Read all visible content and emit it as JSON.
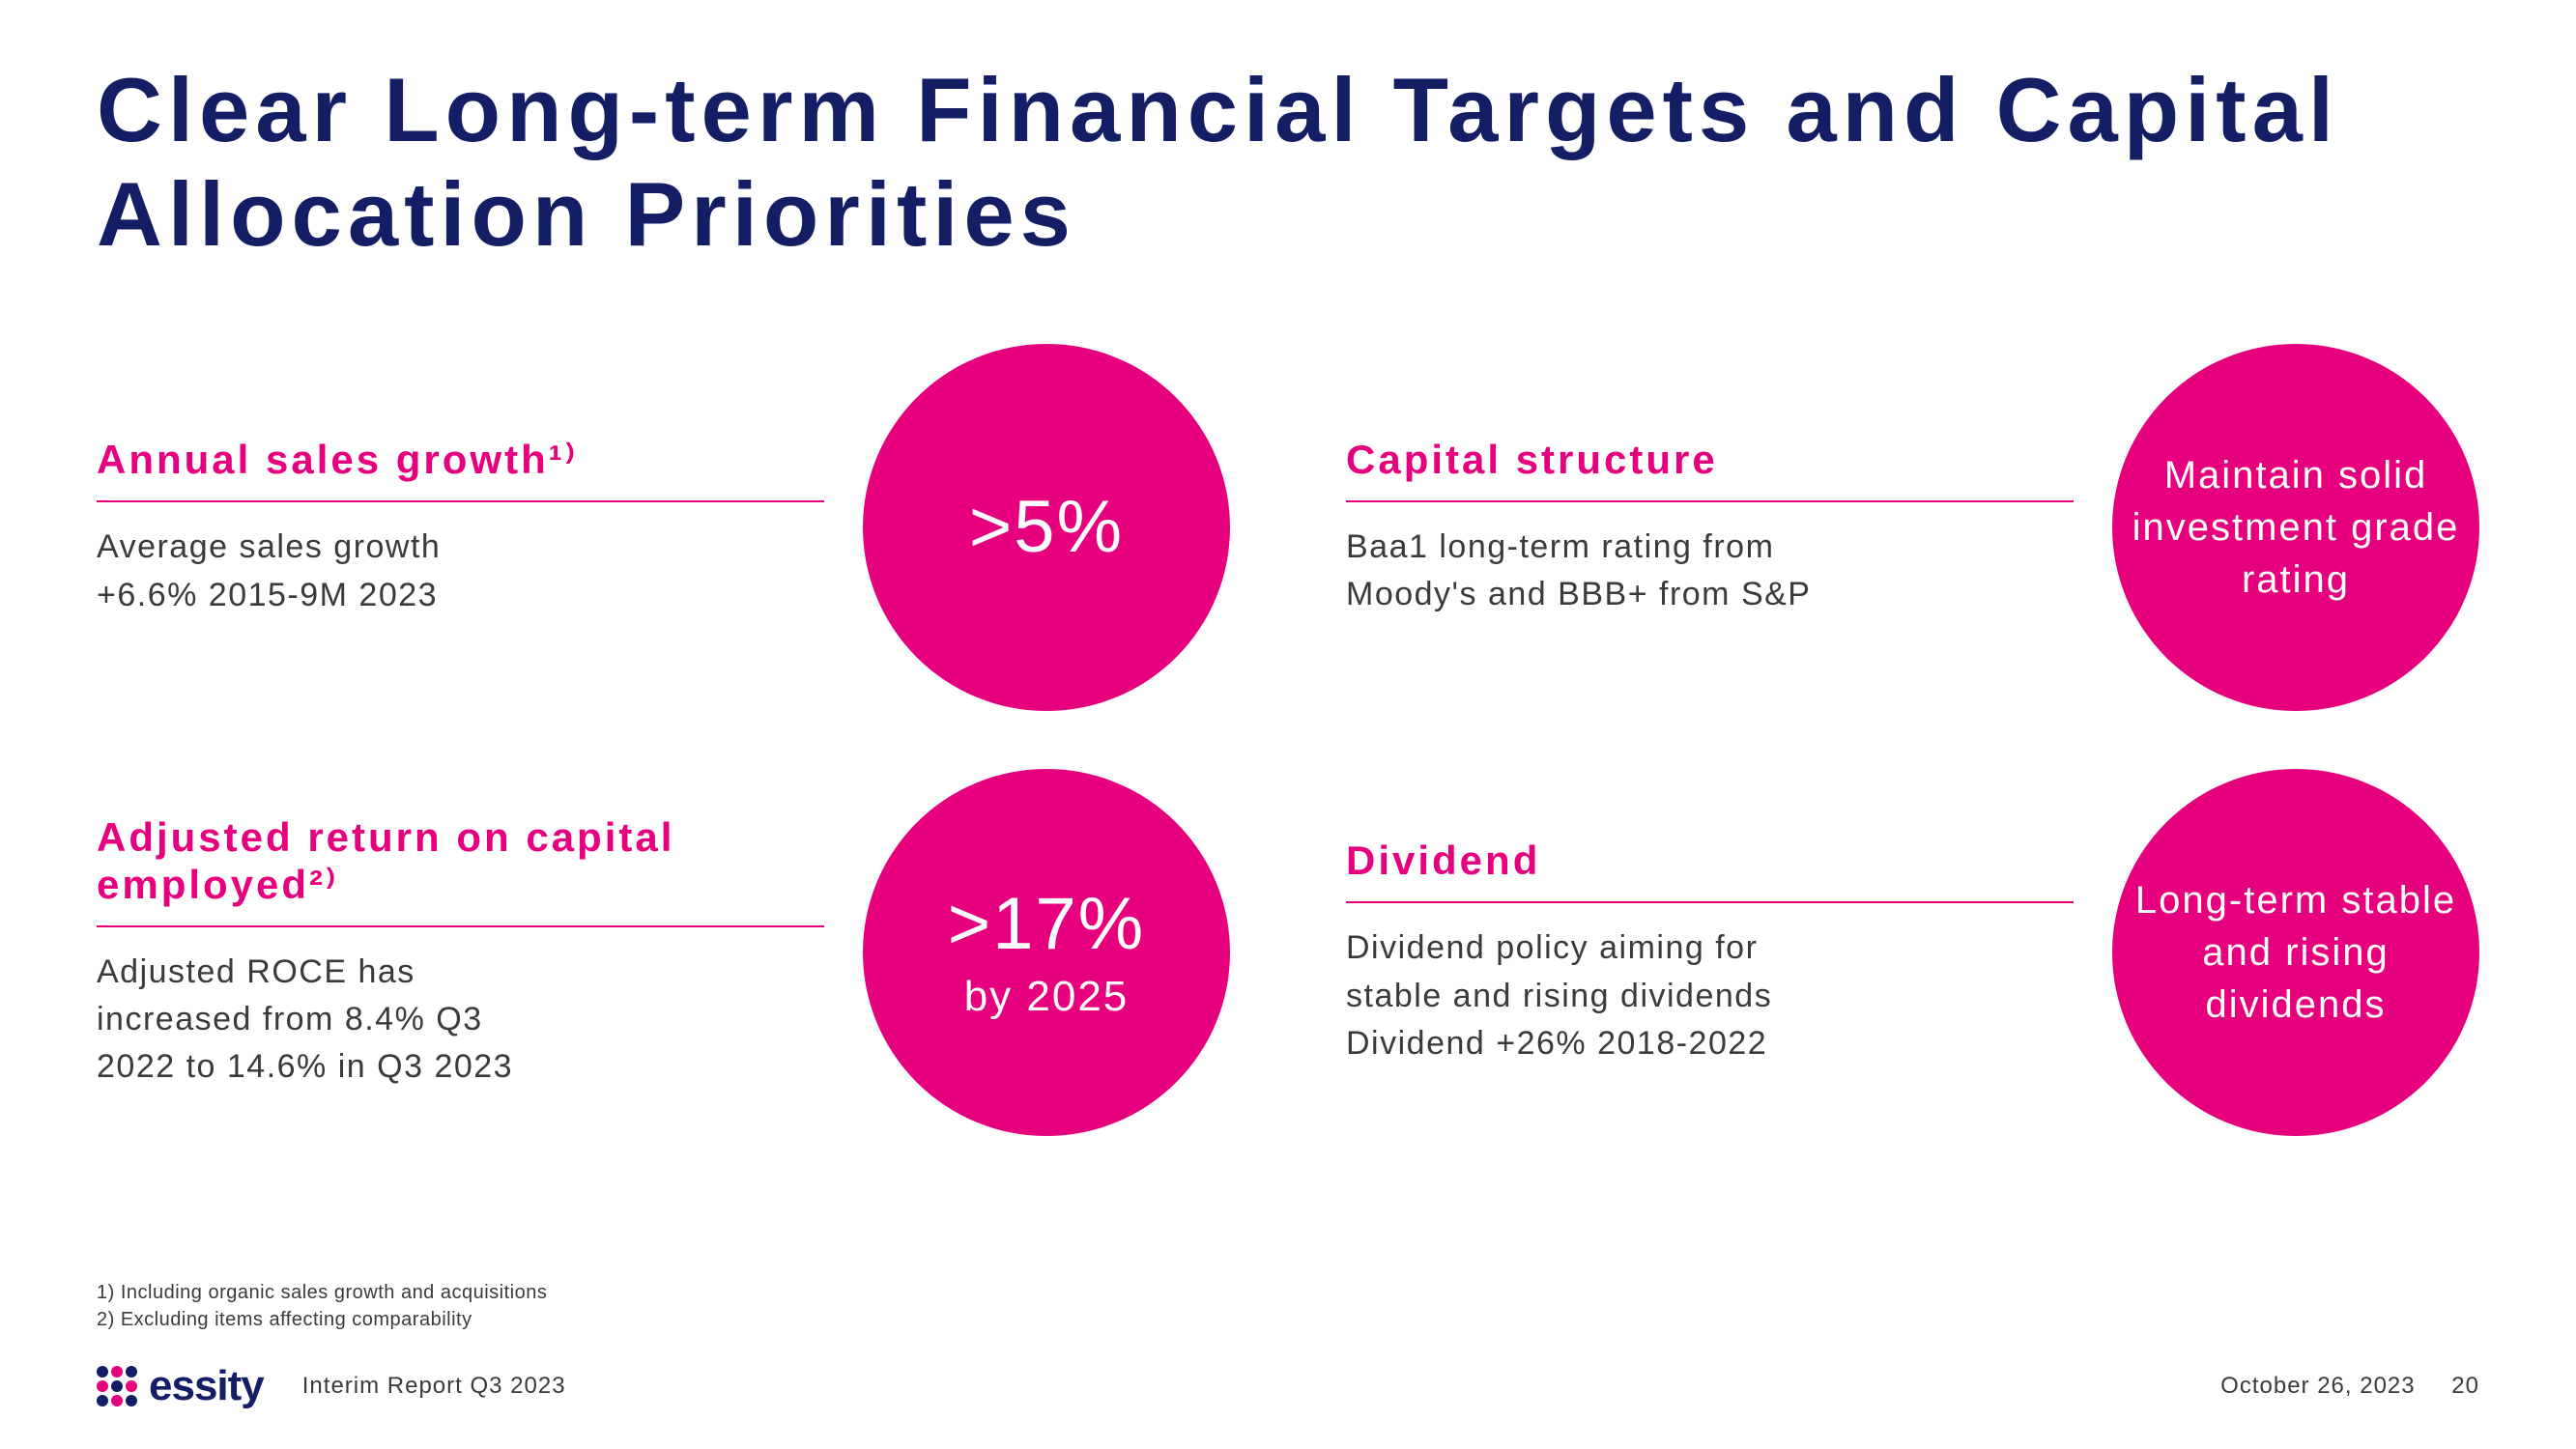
{
  "colors": {
    "brand_navy": "#141e64",
    "brand_magenta": "#e6007e",
    "text_gray": "#3a3a3a",
    "background": "#ffffff",
    "logo_dots": [
      "#141e64",
      "#e6007e",
      "#141e64",
      "#e6007e",
      "#141e64",
      "#e6007e",
      "#141e64",
      "#e6007e",
      "#141e64"
    ]
  },
  "title": "Clear Long-term Financial Targets and Capital Allocation Priorities",
  "targets": [
    {
      "heading": "Annual sales growth¹⁾",
      "desc": "Average sales growth\n+6.6% 2015-9M 2023",
      "circle_main": ">5%",
      "circle_sub": "",
      "circle_type": "big"
    },
    {
      "heading": "Capital structure",
      "desc": "Baa1 long-term rating from\nMoody's and BBB+ from S&P",
      "circle_main": "Maintain solid investment grade rating",
      "circle_sub": "",
      "circle_type": "multi"
    },
    {
      "heading": "Adjusted return on capital employed²⁾",
      "desc": "Adjusted ROCE has\nincreased from 8.4% Q3\n2022 to 14.6% in Q3 2023",
      "circle_main": ">17%",
      "circle_sub": "by 2025",
      "circle_type": "big"
    },
    {
      "heading": "Dividend",
      "desc": "Dividend policy aiming for\nstable and rising dividends\nDividend +26% 2018-2022",
      "circle_main": "Long-term stable and rising dividends",
      "circle_sub": "",
      "circle_type": "multi"
    }
  ],
  "footnotes": {
    "note1": "1) Including organic sales growth and acquisitions",
    "note2": "2) Excluding items affecting comparability"
  },
  "footer": {
    "company": "essity",
    "report": "Interim Report Q3 2023",
    "date": "October 26, 2023",
    "page": "20"
  }
}
